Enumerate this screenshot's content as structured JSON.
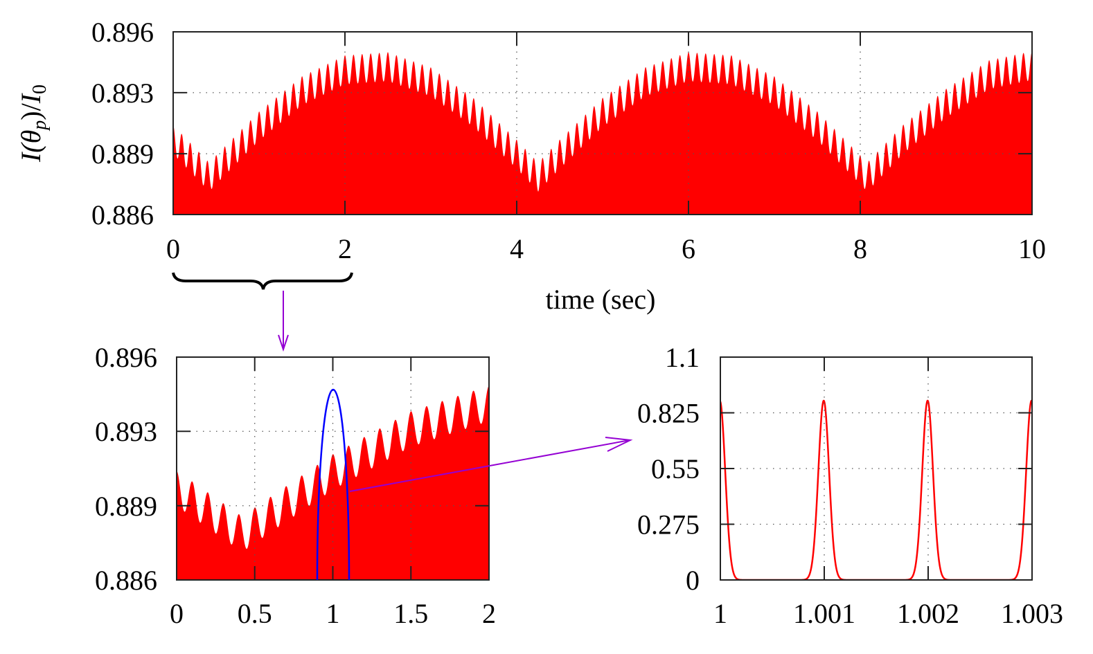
{
  "chart_data": [
    {
      "type": "area",
      "panel": "top",
      "xlim": [
        0,
        10
      ],
      "ylim": [
        0.886,
        0.896
      ],
      "xticks": [
        0,
        2,
        4,
        6,
        8,
        10
      ],
      "xtick_labels": [
        "0",
        "2",
        "4",
        "6",
        "8",
        "10"
      ],
      "yticks": [
        0.886,
        0.88933,
        0.89267,
        0.896
      ],
      "ytick_labels": [
        "0.886",
        "0.889",
        "0.893",
        "0.896"
      ],
      "xlabel": "time (sec)",
      "ylabel_parts": [
        "I",
        "(θ",
        "p",
        ")/",
        "I",
        "0"
      ],
      "grid": true,
      "color": "#ff0000",
      "series": {
        "envelope_t": [
          0,
          0.42,
          0.5,
          1,
          1.5,
          2,
          2.5,
          3,
          3.5,
          4,
          4.25,
          4.5,
          5,
          5.5,
          6,
          6.5,
          7,
          7.5,
          8,
          8.08,
          8.5,
          9,
          9.5,
          10
        ],
        "envelope_mid": [
          0.89011,
          0.88805,
          0.88845,
          0.89084,
          0.89277,
          0.89392,
          0.89409,
          0.89326,
          0.89157,
          0.8893,
          0.88805,
          0.8893,
          0.89159,
          0.89327,
          0.89409,
          0.89392,
          0.89277,
          0.89085,
          0.88845,
          0.88805,
          0.89012,
          0.89209,
          0.89365,
          0.89415
        ],
        "oscillation_amplitude": 0.0008,
        "oscillation_period": 0.1
      }
    },
    {
      "type": "area",
      "panel": "bottom-left",
      "xlim": [
        0,
        2
      ],
      "ylim": [
        0.886,
        0.896
      ],
      "xticks": [
        0,
        0.5,
        1,
        1.5,
        2
      ],
      "xtick_labels": [
        "0",
        "0.5",
        "1",
        "1.5",
        "2"
      ],
      "yticks": [
        0.886,
        0.88933,
        0.89267,
        0.896
      ],
      "ytick_labels": [
        "0.886",
        "0.889",
        "0.893",
        "0.896"
      ],
      "grid": true,
      "color": "#ff0000",
      "series": {
        "envelope_t": [
          0,
          0.42,
          0.5,
          1,
          1.5,
          2
        ],
        "envelope_mid": [
          0.89011,
          0.88805,
          0.88845,
          0.89084,
          0.89277,
          0.89392
        ],
        "oscillation_amplitude": 0.0008,
        "oscillation_period": 0.1
      }
    },
    {
      "type": "line",
      "panel": "bottom-right",
      "xlim": [
        1,
        1.003
      ],
      "ylim": [
        0,
        1.1
      ],
      "xticks": [
        1,
        1.001,
        1.002,
        1.003
      ],
      "xtick_labels": [
        "1",
        "1.001",
        "1.002",
        "1.003"
      ],
      "yticks": [
        0,
        0.275,
        0.55,
        0.825,
        1.1
      ],
      "ytick_labels": [
        "0",
        "0.275",
        "0.55",
        "0.825",
        "1.1"
      ],
      "grid": true,
      "color": "#ff0000",
      "series": {
        "pulse_centers": [
          0.999995,
          1.000995,
          1.001995,
          1.002995
        ],
        "pulse_peak": 0.885,
        "pulse_fwhm": 0.000122
      }
    }
  ],
  "annotations": {
    "brace_range": [
      0,
      2
    ],
    "zoom_highlight_center": 1.0,
    "arrow_color": "#9400d3",
    "highlight_color": "#0000ff"
  }
}
